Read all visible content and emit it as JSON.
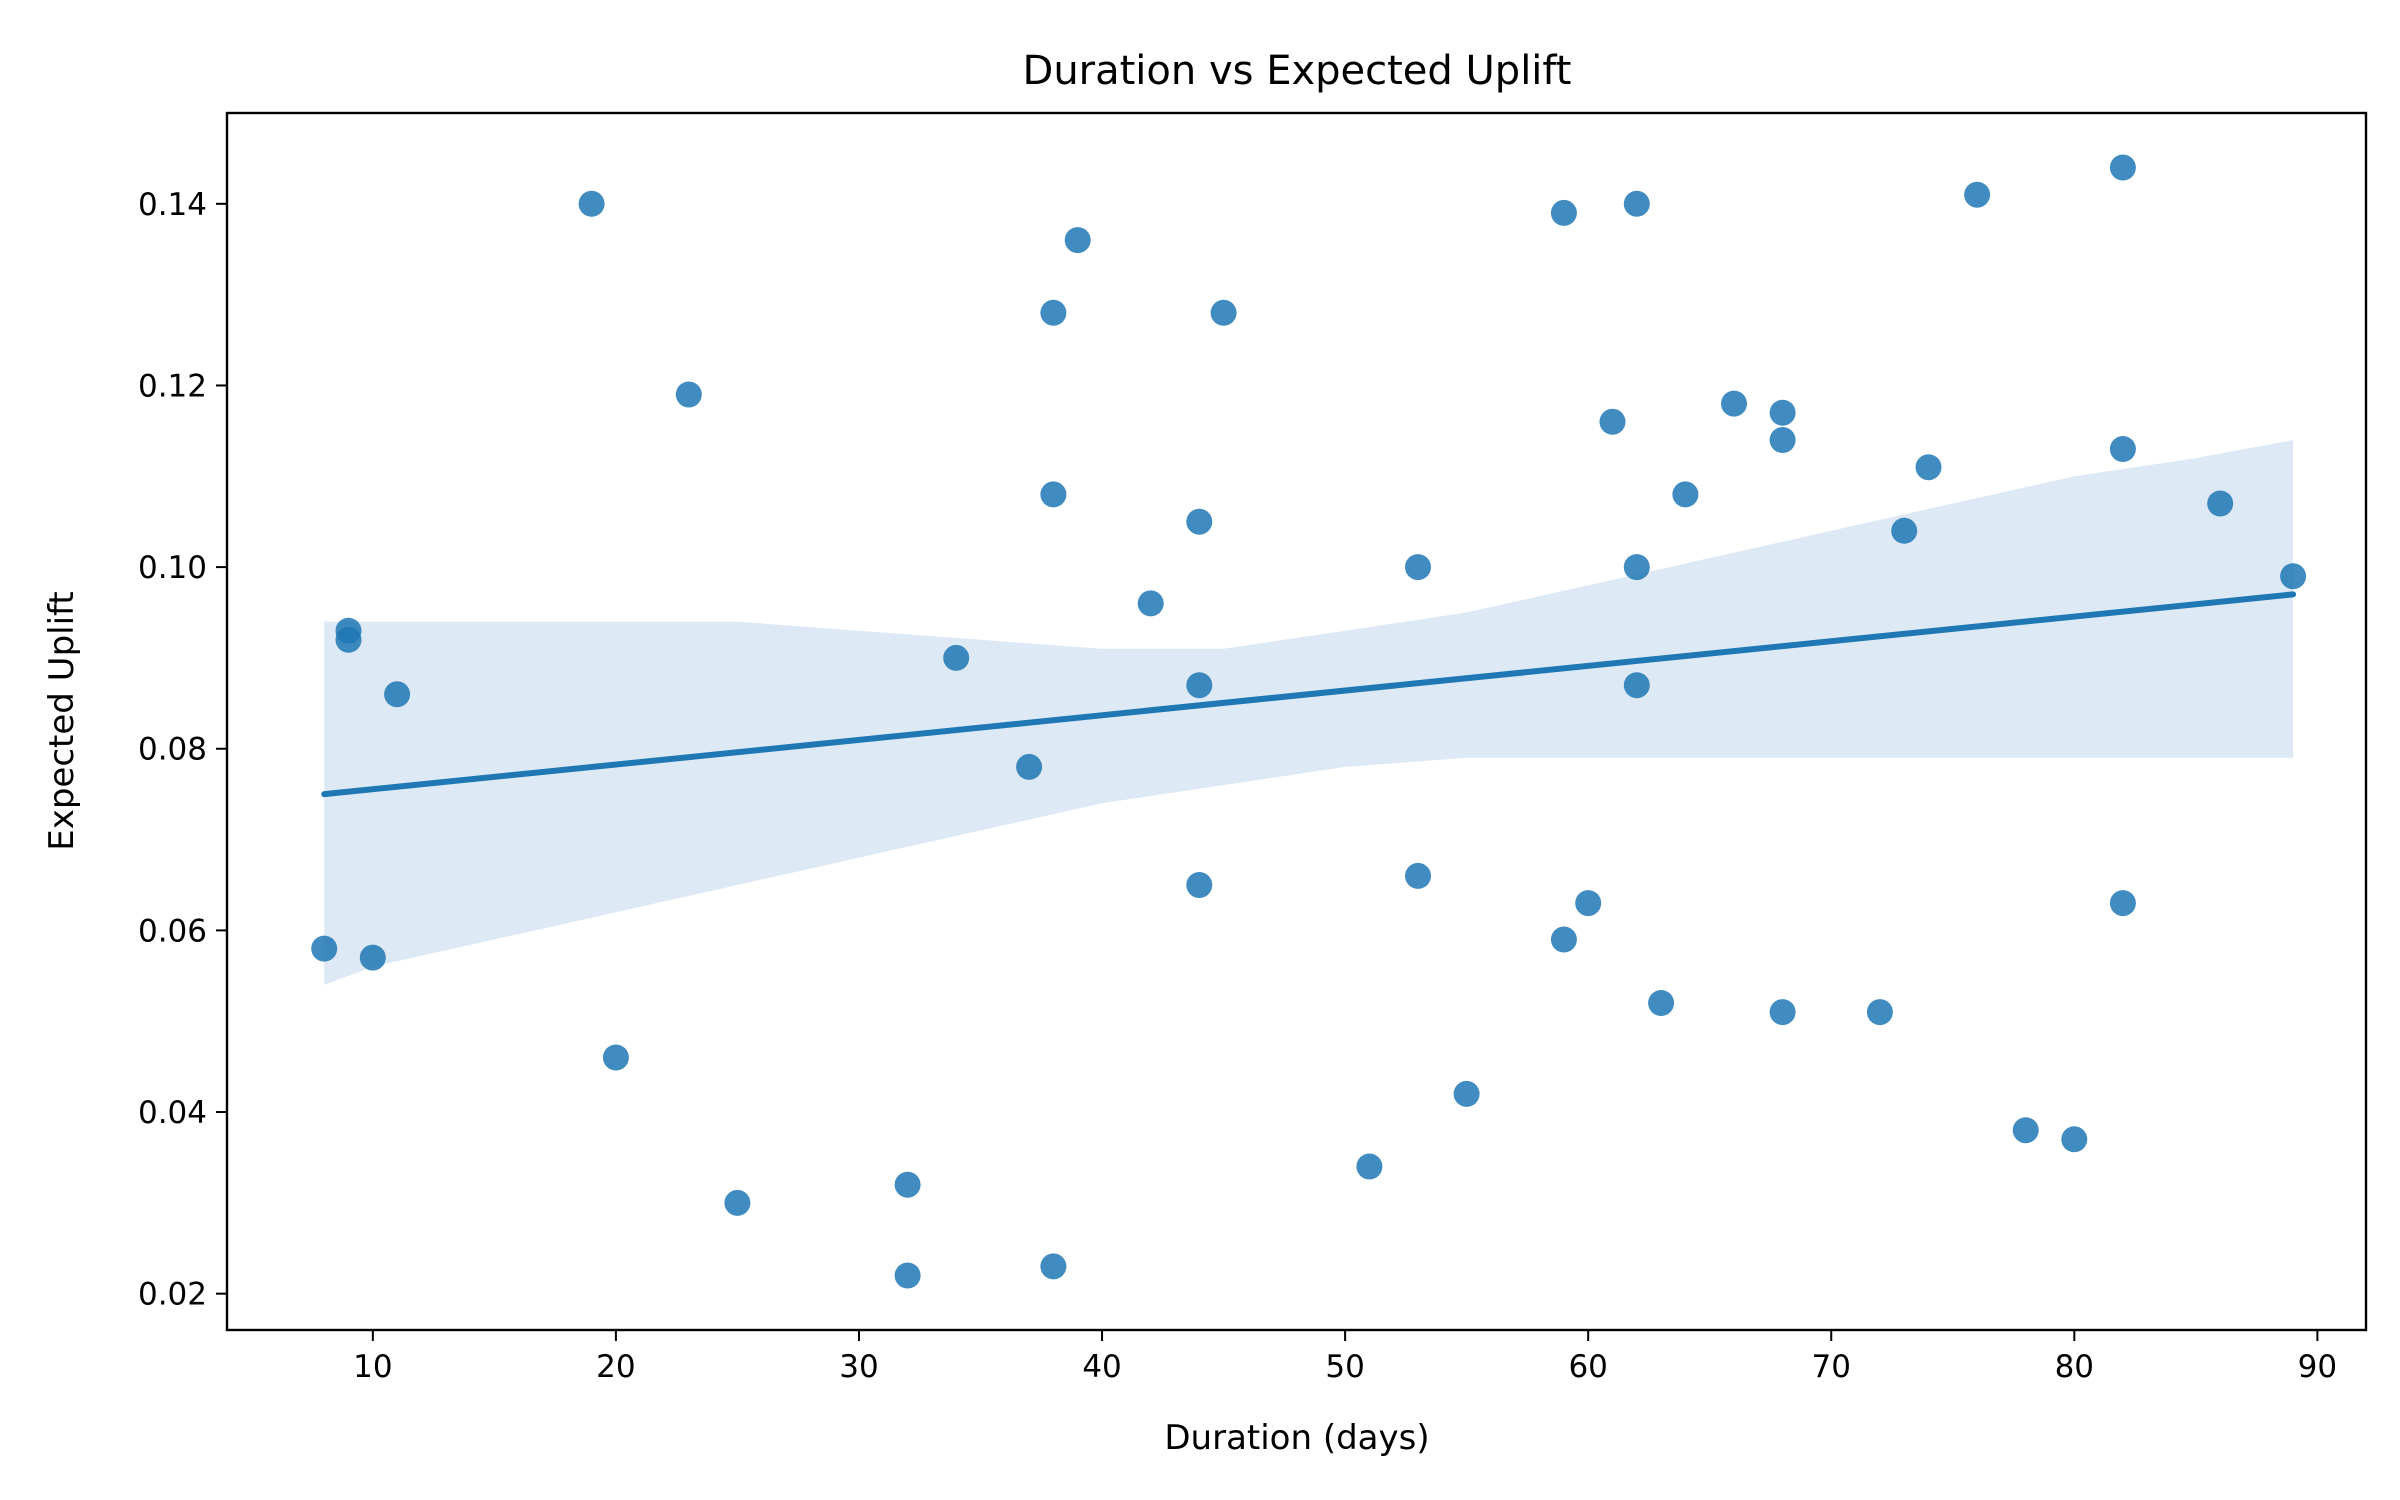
{
  "chart_data": {
    "type": "scatter",
    "title": "Duration vs Expected Uplift",
    "xlabel": "Duration (days)",
    "ylabel": "Expected Uplift",
    "xlim": [
      4,
      92
    ],
    "ylim": [
      0.016,
      0.15
    ],
    "xticks": [
      10,
      20,
      30,
      40,
      50,
      60,
      70,
      80,
      90
    ],
    "yticks": [
      0.02,
      0.04,
      0.06,
      0.08,
      0.1,
      0.12,
      0.14
    ],
    "ytick_labels": [
      "0.02",
      "0.04",
      "0.06",
      "0.08",
      "0.10",
      "0.12",
      "0.14"
    ],
    "grid": false,
    "colors": {
      "points": "#1f77b4",
      "line": "#1f77b4",
      "band": "#c6dbef"
    },
    "points": [
      [
        8,
        0.058
      ],
      [
        9,
        0.093
      ],
      [
        9,
        0.092
      ],
      [
        10,
        0.057
      ],
      [
        11,
        0.086
      ],
      [
        19,
        0.14
      ],
      [
        20,
        0.046
      ],
      [
        23,
        0.119
      ],
      [
        25,
        0.03
      ],
      [
        32,
        0.032
      ],
      [
        32,
        0.022
      ],
      [
        34,
        0.09
      ],
      [
        37,
        0.078
      ],
      [
        38,
        0.128
      ],
      [
        38,
        0.108
      ],
      [
        38,
        0.023
      ],
      [
        39,
        0.136
      ],
      [
        42,
        0.096
      ],
      [
        44,
        0.105
      ],
      [
        44,
        0.087
      ],
      [
        44,
        0.065
      ],
      [
        45,
        0.128
      ],
      [
        51,
        0.034
      ],
      [
        53,
        0.1
      ],
      [
        53,
        0.066
      ],
      [
        55,
        0.042
      ],
      [
        59,
        0.139
      ],
      [
        59,
        0.059
      ],
      [
        60,
        0.063
      ],
      [
        61,
        0.116
      ],
      [
        62,
        0.14
      ],
      [
        62,
        0.1
      ],
      [
        62,
        0.087
      ],
      [
        63,
        0.052
      ],
      [
        64,
        0.108
      ],
      [
        66,
        0.118
      ],
      [
        68,
        0.117
      ],
      [
        68,
        0.114
      ],
      [
        68,
        0.051
      ],
      [
        72,
        0.051
      ],
      [
        73,
        0.104
      ],
      [
        74,
        0.111
      ],
      [
        76,
        0.141
      ],
      [
        78,
        0.038
      ],
      [
        80,
        0.037
      ],
      [
        82,
        0.144
      ],
      [
        82,
        0.113
      ],
      [
        82,
        0.063
      ],
      [
        86,
        0.107
      ],
      [
        89,
        0.099
      ]
    ],
    "regression_line": {
      "x": [
        8,
        89
      ],
      "y": [
        0.075,
        0.097
      ]
    },
    "confidence_band": {
      "x": [
        8,
        10,
        15,
        20,
        25,
        30,
        35,
        40,
        45,
        50,
        55,
        60,
        65,
        70,
        75,
        80,
        85,
        89
      ],
      "upper": [
        0.094,
        0.094,
        0.094,
        0.094,
        0.094,
        0.093,
        0.092,
        0.091,
        0.091,
        0.093,
        0.095,
        0.098,
        0.101,
        0.104,
        0.107,
        0.11,
        0.112,
        0.114
      ],
      "lower": [
        0.054,
        0.056,
        0.059,
        0.062,
        0.065,
        0.068,
        0.071,
        0.074,
        0.076,
        0.078,
        0.079,
        0.079,
        0.079,
        0.079,
        0.079,
        0.079,
        0.079,
        0.079
      ]
    }
  }
}
